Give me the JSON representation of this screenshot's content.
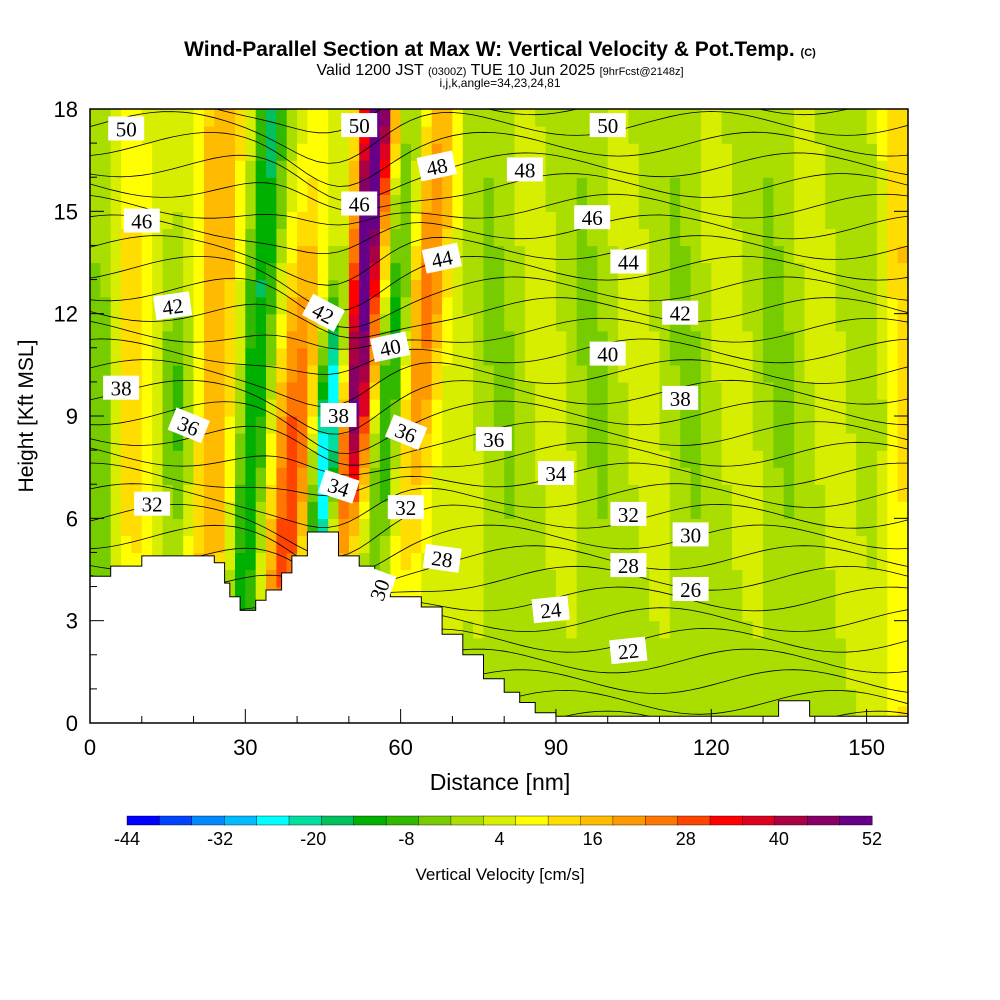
{
  "header": {
    "title_main": "Wind-Parallel Section at Max W: Vertical Velocity & Pot.Temp.",
    "title_mark": "(C)",
    "valid_prefix": "Valid 1200 JST",
    "valid_zulu": "(0300Z)",
    "valid_date": "TUE 10 Jun 2025",
    "fcst": "[9hrFcst@2148z]",
    "indices": "i,j,k,angle=34,23,24,81"
  },
  "chart_data": {
    "type": "heatmap",
    "xlabel": "Distance [nm]",
    "ylabel": "Height [Kft MSL]",
    "xlim": [
      0,
      158
    ],
    "ylim": [
      0,
      18
    ],
    "x_ticks": [
      0,
      30,
      60,
      90,
      120,
      150
    ],
    "y_ticks": [
      0,
      3,
      6,
      9,
      12,
      15,
      18
    ],
    "colorbar": {
      "label": "Vertical Velocity [cm/s]",
      "tick_labels": [
        "-44",
        "-32",
        "-20",
        "-8",
        "4",
        "16",
        "28",
        "40",
        "52"
      ],
      "colors": [
        "#0000ff",
        "#0044ff",
        "#0088ff",
        "#00bbff",
        "#00ffff",
        "#00dda0",
        "#00c060",
        "#00b000",
        "#33b800",
        "#77cc00",
        "#aadd00",
        "#d8ee00",
        "#ffff00",
        "#ffdd00",
        "#ffbb00",
        "#ff9900",
        "#ff7700",
        "#ff4400",
        "#ff0000",
        "#dd0022",
        "#aa0044",
        "#880066",
        "#660088"
      ]
    },
    "terrain": [
      [
        0,
        4.3
      ],
      [
        4,
        4.3
      ],
      [
        4,
        4.6
      ],
      [
        10,
        4.6
      ],
      [
        10,
        4.9
      ],
      [
        24,
        4.9
      ],
      [
        24,
        4.7
      ],
      [
        26,
        4.7
      ],
      [
        26,
        4.1
      ],
      [
        27,
        4.1
      ],
      [
        27,
        3.7
      ],
      [
        29,
        3.7
      ],
      [
        29,
        3.3
      ],
      [
        32,
        3.3
      ],
      [
        32,
        3.6
      ],
      [
        34,
        3.6
      ],
      [
        34,
        3.9
      ],
      [
        37,
        3.9
      ],
      [
        37,
        4.4
      ],
      [
        39,
        4.4
      ],
      [
        39,
        4.9
      ],
      [
        42,
        4.9
      ],
      [
        42,
        5.6
      ],
      [
        48,
        5.6
      ],
      [
        48,
        4.9
      ],
      [
        52,
        4.9
      ],
      [
        52,
        4.6
      ],
      [
        55,
        4.6
      ],
      [
        55,
        4.3
      ],
      [
        58,
        4.3
      ],
      [
        58,
        3.7
      ],
      [
        64,
        3.7
      ],
      [
        64,
        3.4
      ],
      [
        68,
        3.4
      ],
      [
        68,
        2.6
      ],
      [
        72,
        2.6
      ],
      [
        72,
        2.0
      ],
      [
        76,
        2.0
      ],
      [
        76,
        1.3
      ],
      [
        80,
        1.3
      ],
      [
        80,
        0.9
      ],
      [
        83,
        0.9
      ],
      [
        83,
        0.6
      ],
      [
        86,
        0.6
      ],
      [
        86,
        0.3
      ],
      [
        90,
        0.3
      ],
      [
        90,
        0.2
      ],
      [
        133,
        0.2
      ],
      [
        133,
        0.65
      ],
      [
        139,
        0.65
      ],
      [
        139,
        0.2
      ],
      [
        158,
        0.2
      ]
    ],
    "contours": {
      "label": "Pot.Temp.",
      "labels": [
        {
          "text": "50",
          "x": 7,
          "y": 17.4,
          "r": 0
        },
        {
          "text": "50",
          "x": 52,
          "y": 17.5,
          "r": 0
        },
        {
          "text": "50",
          "x": 100,
          "y": 17.5,
          "r": 0
        },
        {
          "text": "48",
          "x": 67,
          "y": 16.3,
          "r": -12
        },
        {
          "text": "48",
          "x": 84,
          "y": 16.2,
          "r": 0
        },
        {
          "text": "46",
          "x": 10,
          "y": 14.7,
          "r": 0
        },
        {
          "text": "46",
          "x": 52,
          "y": 15.2,
          "r": 0
        },
        {
          "text": "46",
          "x": 97,
          "y": 14.8,
          "r": 0
        },
        {
          "text": "44",
          "x": 68,
          "y": 13.6,
          "r": -12
        },
        {
          "text": "44",
          "x": 104,
          "y": 13.5,
          "r": 0
        },
        {
          "text": "42",
          "x": 16,
          "y": 12.2,
          "r": -8
        },
        {
          "text": "42",
          "x": 45,
          "y": 12.0,
          "r": 28
        },
        {
          "text": "42",
          "x": 114,
          "y": 12.0,
          "r": 0
        },
        {
          "text": "40",
          "x": 58,
          "y": 11.0,
          "r": -12
        },
        {
          "text": "40",
          "x": 100,
          "y": 10.8,
          "r": 0
        },
        {
          "text": "38",
          "x": 6,
          "y": 9.8,
          "r": 0
        },
        {
          "text": "38",
          "x": 48,
          "y": 9.0,
          "r": 0
        },
        {
          "text": "38",
          "x": 114,
          "y": 9.5,
          "r": 0
        },
        {
          "text": "36",
          "x": 19,
          "y": 8.7,
          "r": 22
        },
        {
          "text": "36",
          "x": 61,
          "y": 8.5,
          "r": 22
        },
        {
          "text": "36",
          "x": 78,
          "y": 8.3,
          "r": 0
        },
        {
          "text": "34",
          "x": 48,
          "y": 6.9,
          "r": 18
        },
        {
          "text": "34",
          "x": 90,
          "y": 7.3,
          "r": 0
        },
        {
          "text": "32",
          "x": 12,
          "y": 6.4,
          "r": 0
        },
        {
          "text": "32",
          "x": 61,
          "y": 6.3,
          "r": 0
        },
        {
          "text": "32",
          "x": 104,
          "y": 6.1,
          "r": 0
        },
        {
          "text": "30",
          "x": 116,
          "y": 5.5,
          "r": 0
        },
        {
          "text": "30",
          "x": 56,
          "y": 3.9,
          "r": -70
        },
        {
          "text": "28",
          "x": 68,
          "y": 4.8,
          "r": 8
        },
        {
          "text": "28",
          "x": 104,
          "y": 4.6,
          "r": 0
        },
        {
          "text": "26",
          "x": 116,
          "y": 3.9,
          "r": 0
        },
        {
          "text": "24",
          "x": 89,
          "y": 3.3,
          "r": -6
        },
        {
          "text": "22",
          "x": 104,
          "y": 2.1,
          "r": -6
        }
      ]
    }
  }
}
